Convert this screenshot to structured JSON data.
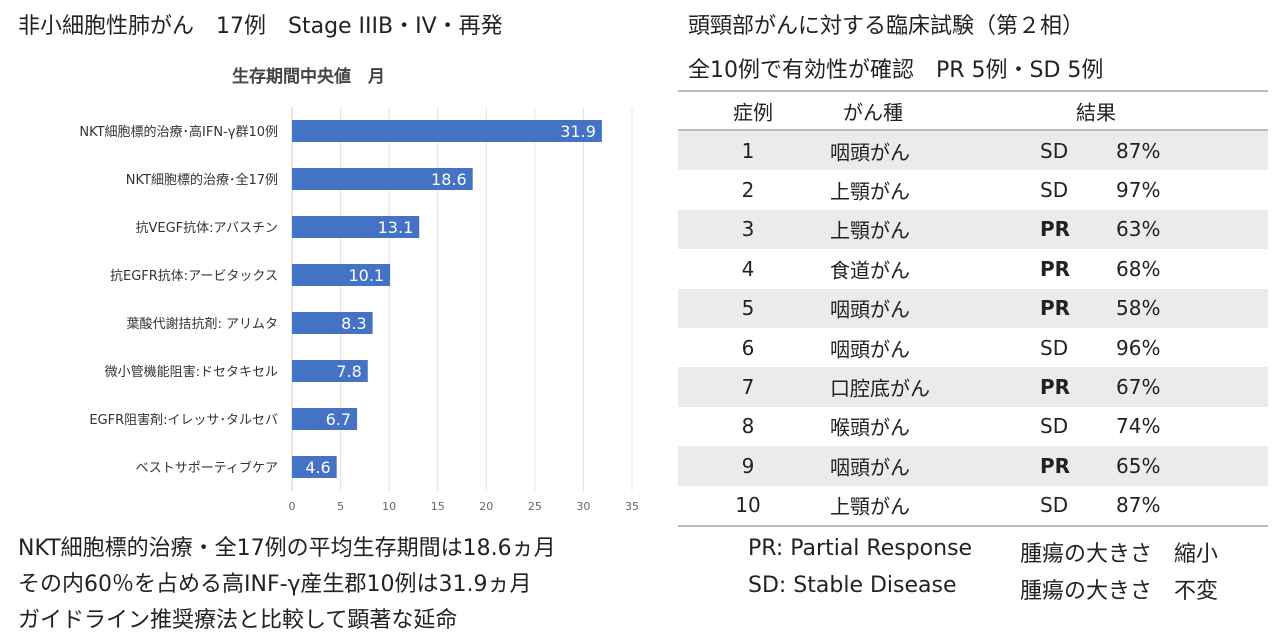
{
  "left": {
    "title": "非小細胞性肺がん　17例　Stage IIIB・IV・再発",
    "notes": [
      "NKT細胞標的治療・全17例の平均生存期間は18.6ヵ月",
      "その内60％を占める高INF-γ産生郡10例は31.9ヵ月",
      "ガイドライン推奨療法と比較して顕著な延命"
    ]
  },
  "chart_data": {
    "type": "bar",
    "orientation": "horizontal",
    "title": "生存期間中央値　月",
    "categories": [
      "NKT細胞標的治療･高IFN-γ群10例",
      "NKT細胞標的治療･全17例",
      "抗VEGF抗体:アバスチン",
      "抗EGFR抗体:アービタックス",
      "葉酸代謝拮抗剤: アリムタ",
      "微小管機能阻害:ドセタキセル",
      "EGFR阻害剤:イレッサ･タルセバ",
      "ベストサポーティブケア"
    ],
    "values": [
      31.9,
      18.6,
      13.1,
      10.1,
      8.3,
      7.8,
      6.7,
      4.6
    ],
    "data_labels": [
      "31.9",
      "18.6",
      "13.1",
      "10.1",
      "8.3",
      "7.8",
      "6.7",
      "4.6"
    ],
    "xlim": [
      0,
      35
    ],
    "xticks": [
      "0",
      "5",
      "10",
      "15",
      "20",
      "25",
      "30",
      "35"
    ],
    "grid": true,
    "color": "#4472c4"
  },
  "right": {
    "title1": "頭頸部がんに対する臨床試験（第２相）",
    "title2": "全10例で有効性が確認　PR 5例・SD 5例",
    "headers": [
      "症例",
      "がん種",
      "結果"
    ],
    "rows": [
      [
        "1",
        "咽頭がん",
        "SD",
        "87%"
      ],
      [
        "2",
        "上顎がん",
        "SD",
        "97%"
      ],
      [
        "3",
        "上顎がん",
        "PR",
        "63%"
      ],
      [
        "4",
        "食道がん",
        "PR",
        "68%"
      ],
      [
        "5",
        "咽頭がん",
        "PR",
        "58%"
      ],
      [
        "6",
        "咽頭がん",
        "SD",
        "96%"
      ],
      [
        "7",
        "口腔底がん",
        "PR",
        "67%"
      ],
      [
        "8",
        "喉頭がん",
        "SD",
        "74%"
      ],
      [
        "9",
        "咽頭がん",
        "PR",
        "65%"
      ],
      [
        "10",
        "上顎がん",
        "SD",
        "87%"
      ]
    ],
    "legend": [
      {
        "abbr": "PR: Partial Response",
        "desc": "腫瘍の大きさ　縮小"
      },
      {
        "abbr": "SD: Stable Disease",
        "desc": "腫瘍の大きさ　不変"
      }
    ],
    "shade_color": "#ebebeb"
  }
}
